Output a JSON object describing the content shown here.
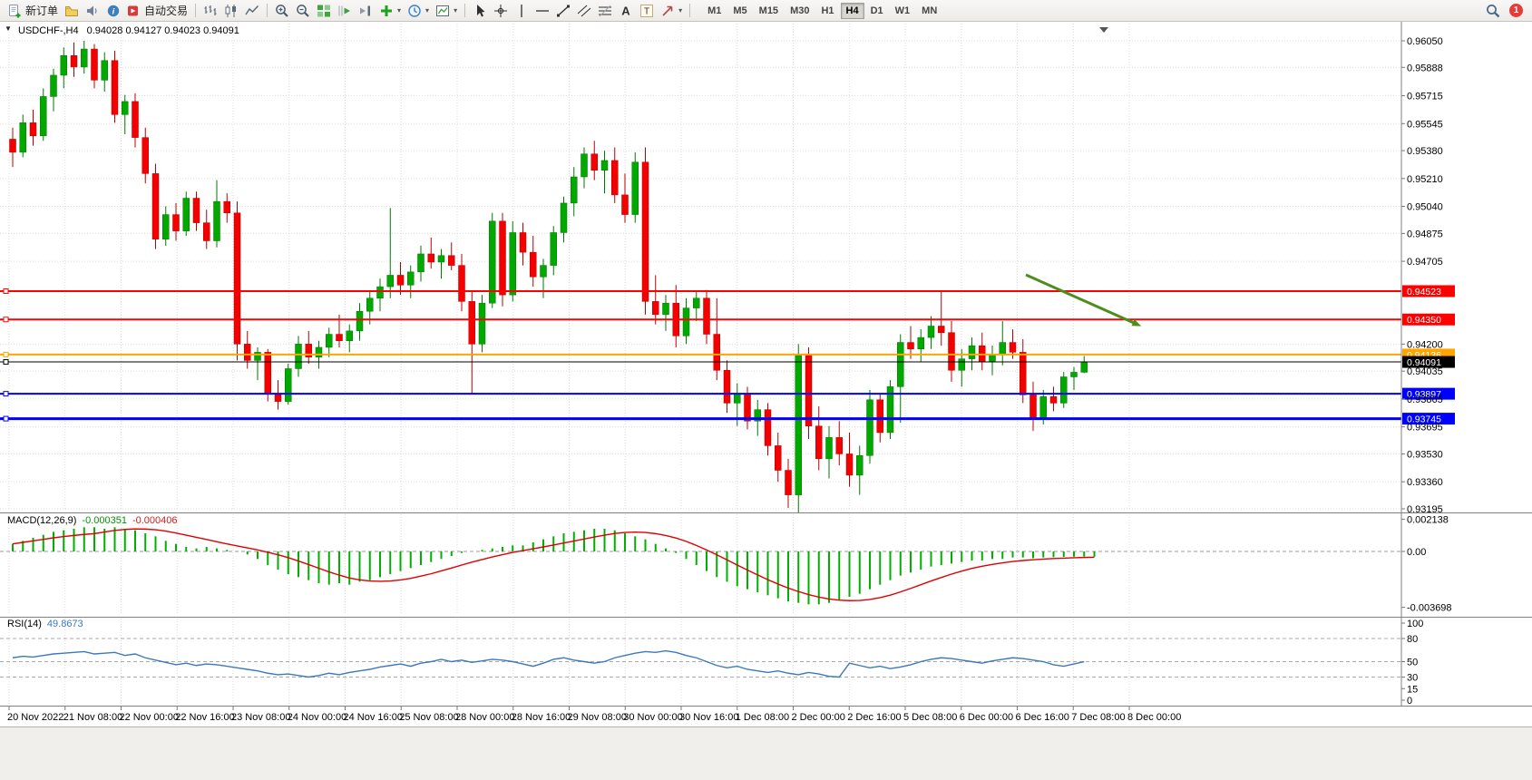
{
  "toolbar": {
    "new_order_label": "新订单",
    "autotrading_label": "自动交易",
    "notification_count": "1",
    "active_timeframe": "H4",
    "timeframes": [
      "M1",
      "M5",
      "M15",
      "M30",
      "H1",
      "H4",
      "D1",
      "W1",
      "MN"
    ],
    "items": [
      {
        "type": "button",
        "name": "new-order",
        "icon": "new-order",
        "label": "新订单"
      },
      {
        "type": "button",
        "name": "charts-profile",
        "icon": "profile"
      },
      {
        "type": "button",
        "name": "sound-alerts",
        "icon": "sound"
      },
      {
        "type": "button",
        "name": "info",
        "icon": "info"
      },
      {
        "type": "button",
        "name": "autotrading",
        "icon": "autotrading",
        "label": "自动交易"
      },
      {
        "type": "separator"
      },
      {
        "type": "button",
        "name": "bar-chart",
        "icon": "bars"
      },
      {
        "type": "button",
        "name": "candlestick-chart",
        "icon": "candles"
      },
      {
        "type": "button",
        "name": "line-chart",
        "icon": "linechart"
      },
      {
        "type": "separator"
      },
      {
        "type": "button",
        "name": "zoom-in",
        "icon": "zoom-in"
      },
      {
        "type": "button",
        "name": "zoom-out",
        "icon": "zoom-out"
      },
      {
        "type": "button",
        "name": "tile-windows",
        "icon": "tiles"
      },
      {
        "type": "button",
        "name": "auto-scroll",
        "icon": "autoscroll"
      },
      {
        "type": "button",
        "name": "chart-shift",
        "icon": "chartshift"
      },
      {
        "type": "button",
        "name": "new-chart",
        "icon": "plus",
        "caret": true
      },
      {
        "type": "button",
        "name": "periods",
        "icon": "clock",
        "caret": true
      },
      {
        "type": "button",
        "name": "templates",
        "icon": "template",
        "caret": true
      },
      {
        "type": "separator"
      },
      {
        "type": "button",
        "name": "cursor",
        "icon": "cursor"
      },
      {
        "type": "button",
        "name": "crosshair",
        "icon": "crosshair"
      },
      {
        "type": "button",
        "name": "vertical-line",
        "icon": "vline"
      },
      {
        "type": "button",
        "name": "horizontal-line",
        "icon": "hline"
      },
      {
        "type": "button",
        "name": "trendline",
        "icon": "trend"
      },
      {
        "type": "button",
        "name": "equidistant-channel",
        "icon": "channel"
      },
      {
        "type": "button",
        "name": "fibonacci",
        "icon": "fibo"
      },
      {
        "type": "button",
        "name": "text",
        "icon": "textA"
      },
      {
        "type": "button",
        "name": "text-label",
        "icon": "textT"
      },
      {
        "type": "button",
        "name": "arrows",
        "icon": "arrows",
        "caret": true
      },
      {
        "type": "separator"
      }
    ]
  },
  "chart": {
    "one_click_arrow": "▼",
    "symbol_title": "USDCHF-,H4",
    "ohlc_text": "0.94028 0.94127 0.94023 0.94091",
    "macd_label": "MACD(12,26,9)",
    "macd_main_value": "-0.000351",
    "macd_signal_value": "-0.000406",
    "rsi_label": "RSI(14)",
    "rsi_value": "49.8673"
  },
  "chart_data": {
    "type": "candlestick",
    "symbol": "USDCHF-",
    "timeframe": "H4",
    "ohlc_current": {
      "open": 0.94028,
      "high": 0.94127,
      "low": 0.94023,
      "close": 0.94091
    },
    "price_axis_ticks": [
      0.9605,
      0.95888,
      0.95715,
      0.95545,
      0.9538,
      0.9521,
      0.9504,
      0.94875,
      0.94705,
      0.942,
      0.94035,
      0.93865,
      0.93695,
      0.9353,
      0.9336,
      0.93195
    ],
    "time_axis_labels": [
      "20 Nov 2022",
      "21 Nov 08:00",
      "22 Nov 00:00",
      "22 Nov 16:00",
      "23 Nov 08:00",
      "24 Nov 00:00",
      "24 Nov 16:00",
      "25 Nov 08:00",
      "28 Nov 00:00",
      "28 Nov 16:00",
      "29 Nov 08:00",
      "30 Nov 00:00",
      "30 Nov 16:00",
      "1 Dec 08:00",
      "2 Dec 00:00",
      "2 Dec 16:00",
      "5 Dec 08:00",
      "6 Dec 00:00",
      "6 Dec 16:00",
      "7 Dec 08:00",
      "8 Dec 00:00"
    ],
    "candles": [
      [
        0.9545,
        0.9552,
        0.9528,
        0.9537
      ],
      [
        0.9537,
        0.956,
        0.9534,
        0.9555
      ],
      [
        0.9555,
        0.9563,
        0.9541,
        0.9547
      ],
      [
        0.9547,
        0.9576,
        0.9544,
        0.9571
      ],
      [
        0.9571,
        0.9588,
        0.9562,
        0.9584
      ],
      [
        0.9584,
        0.9601,
        0.9576,
        0.9596
      ],
      [
        0.9596,
        0.9604,
        0.9583,
        0.9589
      ],
      [
        0.9589,
        0.9605,
        0.9585,
        0.96
      ],
      [
        0.96,
        0.9603,
        0.9576,
        0.9581
      ],
      [
        0.9581,
        0.9598,
        0.9574,
        0.9593
      ],
      [
        0.9593,
        0.9599,
        0.9555,
        0.956
      ],
      [
        0.956,
        0.9572,
        0.9548,
        0.9568
      ],
      [
        0.9568,
        0.9573,
        0.954,
        0.9546
      ],
      [
        0.9546,
        0.9552,
        0.9518,
        0.9524
      ],
      [
        0.9524,
        0.953,
        0.9478,
        0.9484
      ],
      [
        0.9484,
        0.9504,
        0.948,
        0.9499
      ],
      [
        0.9499,
        0.9506,
        0.9483,
        0.9489
      ],
      [
        0.9489,
        0.9513,
        0.9486,
        0.9509
      ],
      [
        0.9509,
        0.9513,
        0.9489,
        0.9494
      ],
      [
        0.9494,
        0.9502,
        0.9478,
        0.9483
      ],
      [
        0.9483,
        0.952,
        0.9479,
        0.9507
      ],
      [
        0.9507,
        0.9512,
        0.9494,
        0.95
      ],
      [
        0.95,
        0.9507,
        0.941,
        0.942
      ],
      [
        0.942,
        0.9428,
        0.9405,
        0.941
      ],
      [
        0.941,
        0.9418,
        0.9398,
        0.9415
      ],
      [
        0.9415,
        0.9417,
        0.9385,
        0.939
      ],
      [
        0.939,
        0.9398,
        0.938,
        0.9385
      ],
      [
        0.9385,
        0.9408,
        0.9383,
        0.9405
      ],
      [
        0.9405,
        0.9425,
        0.94,
        0.942
      ],
      [
        0.942,
        0.9428,
        0.9408,
        0.9412
      ],
      [
        0.9412,
        0.9422,
        0.9405,
        0.9418
      ],
      [
        0.9418,
        0.943,
        0.9412,
        0.9426
      ],
      [
        0.9426,
        0.9438,
        0.9418,
        0.9422
      ],
      [
        0.9422,
        0.9432,
        0.9415,
        0.9428
      ],
      [
        0.9428,
        0.9445,
        0.9422,
        0.944
      ],
      [
        0.944,
        0.9452,
        0.9432,
        0.9448
      ],
      [
        0.9448,
        0.946,
        0.944,
        0.9455
      ],
      [
        0.9455,
        0.9503,
        0.9448,
        0.9462
      ],
      [
        0.9462,
        0.947,
        0.945,
        0.9456
      ],
      [
        0.9456,
        0.9468,
        0.9448,
        0.9464
      ],
      [
        0.9464,
        0.948,
        0.9458,
        0.9475
      ],
      [
        0.9475,
        0.9485,
        0.9466,
        0.947
      ],
      [
        0.947,
        0.9478,
        0.946,
        0.9474
      ],
      [
        0.9474,
        0.9482,
        0.9465,
        0.9468
      ],
      [
        0.9468,
        0.9475,
        0.944,
        0.9446
      ],
      [
        0.9446,
        0.9452,
        0.939,
        0.942
      ],
      [
        0.942,
        0.945,
        0.9415,
        0.9445
      ],
      [
        0.9445,
        0.95,
        0.9442,
        0.9495
      ],
      [
        0.9495,
        0.95,
        0.9443,
        0.945
      ],
      [
        0.945,
        0.9495,
        0.9446,
        0.9488
      ],
      [
        0.9488,
        0.9494,
        0.9468,
        0.9476
      ],
      [
        0.9476,
        0.9486,
        0.9455,
        0.9461
      ],
      [
        0.9461,
        0.9472,
        0.9448,
        0.9468
      ],
      [
        0.9468,
        0.9492,
        0.9462,
        0.9488
      ],
      [
        0.9488,
        0.951,
        0.9482,
        0.9506
      ],
      [
        0.9506,
        0.9528,
        0.9498,
        0.9522
      ],
      [
        0.9522,
        0.954,
        0.9515,
        0.9536
      ],
      [
        0.9536,
        0.9544,
        0.952,
        0.9526
      ],
      [
        0.9526,
        0.9538,
        0.9512,
        0.9532
      ],
      [
        0.9532,
        0.954,
        0.9506,
        0.9511
      ],
      [
        0.9511,
        0.9524,
        0.9494,
        0.9499
      ],
      [
        0.9499,
        0.9537,
        0.9494,
        0.9531
      ],
      [
        0.9531,
        0.954,
        0.9438,
        0.9446
      ],
      [
        0.9446,
        0.9462,
        0.9432,
        0.9438
      ],
      [
        0.9438,
        0.945,
        0.9428,
        0.9445
      ],
      [
        0.9445,
        0.9456,
        0.9418,
        0.9425
      ],
      [
        0.9425,
        0.9448,
        0.942,
        0.9442
      ],
      [
        0.9442,
        0.9452,
        0.9434,
        0.9448
      ],
      [
        0.9448,
        0.9453,
        0.942,
        0.9426
      ],
      [
        0.9426,
        0.9448,
        0.9398,
        0.9404
      ],
      [
        0.9404,
        0.941,
        0.9378,
        0.9384
      ],
      [
        0.9384,
        0.9396,
        0.937,
        0.939
      ],
      [
        0.939,
        0.9394,
        0.9368,
        0.9373
      ],
      [
        0.9373,
        0.9386,
        0.9364,
        0.938
      ],
      [
        0.938,
        0.9384,
        0.9352,
        0.9358
      ],
      [
        0.9358,
        0.9366,
        0.9336,
        0.9343
      ],
      [
        0.9343,
        0.935,
        0.932,
        0.9328
      ],
      [
        0.9328,
        0.942,
        0.9317,
        0.9413
      ],
      [
        0.9413,
        0.9418,
        0.9362,
        0.937
      ],
      [
        0.937,
        0.9382,
        0.9343,
        0.935
      ],
      [
        0.935,
        0.937,
        0.9338,
        0.9363
      ],
      [
        0.9363,
        0.9373,
        0.9346,
        0.9353
      ],
      [
        0.9353,
        0.9366,
        0.9333,
        0.934
      ],
      [
        0.934,
        0.9358,
        0.9328,
        0.9352
      ],
      [
        0.9352,
        0.9392,
        0.9347,
        0.9386
      ],
      [
        0.9386,
        0.939,
        0.936,
        0.9366
      ],
      [
        0.9366,
        0.9398,
        0.9362,
        0.9394
      ],
      [
        0.9394,
        0.9426,
        0.9372,
        0.9421
      ],
      [
        0.9421,
        0.9431,
        0.9411,
        0.9417
      ],
      [
        0.9417,
        0.9429,
        0.9409,
        0.9424
      ],
      [
        0.9424,
        0.9437,
        0.9417,
        0.9431
      ],
      [
        0.9431,
        0.9452,
        0.9419,
        0.9427
      ],
      [
        0.9427,
        0.9434,
        0.9397,
        0.9404
      ],
      [
        0.9404,
        0.9417,
        0.9394,
        0.9411
      ],
      [
        0.9411,
        0.9424,
        0.9404,
        0.9419
      ],
      [
        0.9419,
        0.9427,
        0.9404,
        0.9409
      ],
      [
        0.9409,
        0.9419,
        0.9401,
        0.9414
      ],
      [
        0.9414,
        0.9434,
        0.9407,
        0.9421
      ],
      [
        0.9421,
        0.9429,
        0.9411,
        0.9415
      ],
      [
        0.9415,
        0.9423,
        0.9384,
        0.9389
      ],
      [
        0.9389,
        0.9397,
        0.9367,
        0.9374
      ],
      [
        0.9374,
        0.9392,
        0.9371,
        0.9388
      ],
      [
        0.9388,
        0.9394,
        0.9379,
        0.9384
      ],
      [
        0.9384,
        0.9403,
        0.9381,
        0.94
      ],
      [
        0.94,
        0.9406,
        0.9392,
        0.94028
      ],
      [
        0.94028,
        0.94127,
        0.94023,
        0.94091
      ]
    ],
    "lines": [
      {
        "name": "resistance-line-1",
        "price": 0.94523,
        "label": "0.94523",
        "color": "#FF0000",
        "width": 2
      },
      {
        "name": "resistance-line-2",
        "price": 0.9435,
        "label": "0.94350",
        "color": "#FF0000",
        "width": 2
      },
      {
        "name": "pivot-line",
        "price": 0.94136,
        "label": "0.94136",
        "color": "#FFA500",
        "width": 2
      },
      {
        "name": "current-price-line",
        "price": 0.94091,
        "label": "0.94091",
        "color": "#000000",
        "width": 1
      },
      {
        "name": "support-line-1",
        "price": 0.93897,
        "label": "0.93897",
        "color": "#0000FF",
        "width": 2
      },
      {
        "name": "support-line-2",
        "price": 0.93745,
        "label": "0.93745",
        "color": "#0000FF",
        "width": 3
      }
    ],
    "arrow_annotation": {
      "color": "#4E8C1E",
      "direction": "down-right"
    },
    "macd": {
      "label": "MACD(12,26,9)",
      "main_value": -0.000351,
      "signal_value": -0.000406,
      "axis_labels": [
        "0.002138",
        "0.00",
        "-0.003698"
      ],
      "histogram": [
        0.0005,
        0.0007,
        0.0009,
        0.0011,
        0.0013,
        0.0014,
        0.0015,
        0.0016,
        0.0016,
        0.0015,
        0.0016,
        0.0015,
        0.0014,
        0.0012,
        0.001,
        0.0007,
        0.0005,
        0.0003,
        0.0002,
        0.0003,
        0.0002,
        0.0001,
        0.0,
        -0.0002,
        -0.0005,
        -0.0009,
        -0.0012,
        -0.0015,
        -0.0017,
        -0.0019,
        -0.0021,
        -0.0022,
        -0.0021,
        -0.0022,
        -0.002,
        -0.0019,
        -0.0017,
        -0.0015,
        -0.0013,
        -0.0011,
        -0.0009,
        -0.0007,
        -0.0005,
        -0.0003,
        -0.0001,
        0.0,
        0.0001,
        0.0002,
        0.0003,
        0.0004,
        0.0004,
        0.0006,
        0.0008,
        0.001,
        0.0012,
        0.0013,
        0.0014,
        0.0015,
        0.0015,
        0.0014,
        0.0012,
        0.001,
        0.0008,
        0.0005,
        0.0002,
        -0.0001,
        -0.0005,
        -0.0009,
        -0.0013,
        -0.0017,
        -0.002,
        -0.0023,
        -0.0025,
        -0.0027,
        -0.0029,
        -0.0031,
        -0.0033,
        -0.0034,
        -0.0035,
        -0.0035,
        -0.0034,
        -0.0032,
        -0.003,
        -0.0028,
        -0.0025,
        -0.0022,
        -0.0019,
        -0.0016,
        -0.0014,
        -0.0012,
        -0.001,
        -0.0009,
        -0.0008,
        -0.0007,
        -0.0006,
        -0.0006,
        -0.0005,
        -0.0005,
        -0.0004,
        -0.0004,
        -0.00045,
        -0.0004,
        -0.00038,
        -0.00036,
        -0.00035,
        -0.00034,
        -0.000351
      ]
    },
    "rsi": {
      "label": "RSI(14)",
      "current_value": 49.8673,
      "axis": [
        100,
        80,
        50,
        30,
        15,
        0
      ],
      "levels": [
        80,
        50,
        30
      ],
      "values": [
        55,
        57,
        56,
        58,
        60,
        61,
        62,
        63,
        60,
        61,
        62,
        58,
        60,
        55,
        52,
        49,
        46,
        48,
        45,
        47,
        46,
        44,
        42,
        40,
        38,
        35,
        33,
        34,
        32,
        30,
        32,
        35,
        33,
        36,
        38,
        40,
        43,
        45,
        47,
        44,
        48,
        50,
        53,
        50,
        52,
        49,
        51,
        53,
        52,
        50,
        47,
        44,
        48,
        53,
        55,
        52,
        50,
        48,
        50,
        55,
        58,
        61,
        63,
        62,
        64,
        62,
        58,
        55,
        50,
        45,
        42,
        44,
        40,
        38,
        36,
        38,
        35,
        33,
        36,
        34,
        31,
        30,
        48,
        45,
        42,
        44,
        41,
        43,
        46,
        50,
        53,
        55,
        54,
        52,
        50,
        48,
        51,
        53,
        55,
        54,
        52,
        50,
        46,
        44,
        47,
        49.87
      ]
    },
    "colors": {
      "bull": "#00A800",
      "bear": "#F40000",
      "macd_histogram": "#00B000",
      "macd_signal": "#E00000",
      "rsi_line": "#3C78BE",
      "grid": "#DCDCDC"
    }
  }
}
